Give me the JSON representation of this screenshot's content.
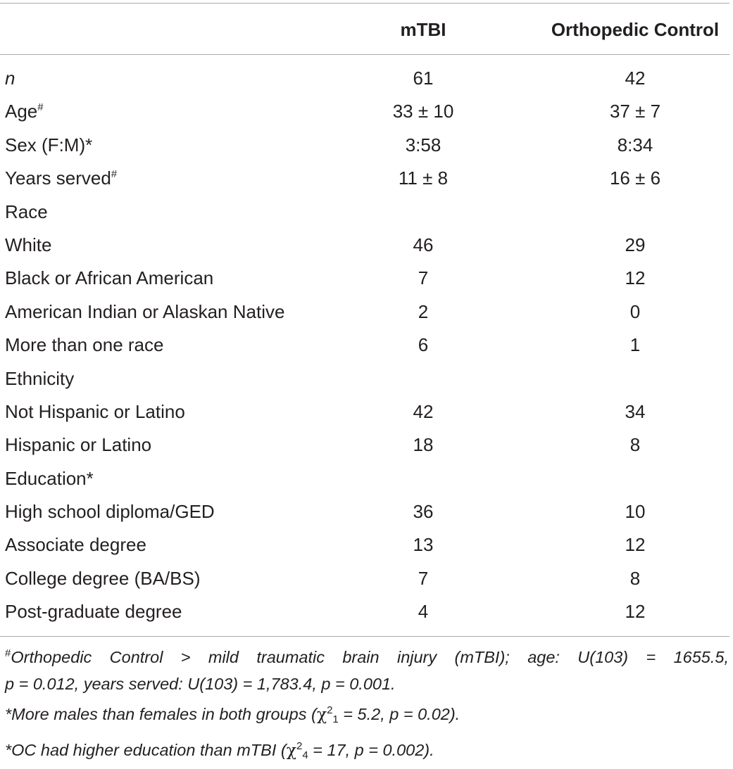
{
  "table": {
    "columns": [
      "",
      "mTBI",
      "Orthopedic Control"
    ],
    "rows": [
      {
        "label": "n",
        "italic": true,
        "sup": "",
        "mtbi": "61",
        "oc": "42"
      },
      {
        "label": "Age",
        "sup": "#",
        "mtbi": "33 ± 10",
        "oc": "37 ± 7"
      },
      {
        "label": "Sex (F:M)*",
        "sup": "",
        "mtbi": "3:58",
        "oc": "8:34"
      },
      {
        "label": "Years served",
        "sup": "#",
        "mtbi": "11 ± 8",
        "oc": "16 ± 6"
      },
      {
        "label": "Race",
        "sup": "",
        "mtbi": "",
        "oc": ""
      },
      {
        "label": "White",
        "sup": "",
        "mtbi": "46",
        "oc": "29"
      },
      {
        "label": "Black or African American",
        "sup": "",
        "mtbi": "7",
        "oc": "12"
      },
      {
        "label": "American Indian or Alaskan Native",
        "sup": "",
        "mtbi": "2",
        "oc": "0"
      },
      {
        "label": "More than one race",
        "sup": "",
        "mtbi": "6",
        "oc": "1"
      },
      {
        "label": "Ethnicity",
        "sup": "",
        "mtbi": "",
        "oc": ""
      },
      {
        "label": "Not Hispanic or Latino",
        "sup": "",
        "mtbi": "42",
        "oc": "34"
      },
      {
        "label": "Hispanic or Latino",
        "sup": "",
        "mtbi": "18",
        "oc": "8"
      },
      {
        "label": "Education*",
        "sup": "",
        "mtbi": "",
        "oc": ""
      },
      {
        "label": "High school diploma/GED",
        "sup": "",
        "mtbi": "36",
        "oc": "10"
      },
      {
        "label": "Associate degree",
        "sup": "",
        "mtbi": "13",
        "oc": "12"
      },
      {
        "label": "College degree (BA/BS)",
        "sup": "",
        "mtbi": "7",
        "oc": "8"
      },
      {
        "label": "Post-graduate degree",
        "sup": "",
        "mtbi": "4",
        "oc": "12"
      }
    ]
  },
  "notes": {
    "note1_mark": "#",
    "note1_line1": "Orthopedic Control > mild traumatic brain injury (mTBI); age: U(103) = 1655.5,",
    "note1_line2": "p = 0.012, years served: U(103) = 1,783.4, p = 0.001.",
    "note2_pre": "*More males than females in both groups (",
    "note2_chi": "χ",
    "note2_sup": "2",
    "note2_sub": "1",
    "note2_post": " = 5.2, p = 0.02).",
    "note3_pre": "*OC had higher education than mTBI (",
    "note3_chi": "χ",
    "note3_sup": "2",
    "note3_sub": "4",
    "note3_post": " = 17, p = 0.002)."
  }
}
